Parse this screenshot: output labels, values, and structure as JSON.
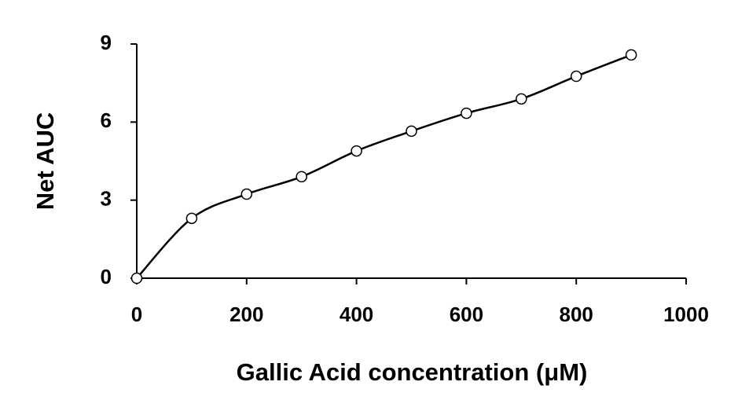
{
  "chart_data": {
    "type": "line",
    "x_label": "Gallic Acid concentration (μM)",
    "y_label": "Net AUC",
    "x": [
      0,
      100,
      200,
      300,
      400,
      500,
      600,
      700,
      800,
      900
    ],
    "series": [
      {
        "name": "Net AUC",
        "color": "#000000",
        "values": [
          0,
          2.3,
          3.23,
          3.9,
          4.89,
          5.65,
          6.34,
          6.89,
          7.76,
          8.58
        ]
      }
    ],
    "xlim": [
      0,
      1000
    ],
    "xticks": [
      0,
      200,
      400,
      600,
      800,
      1000
    ],
    "ylim": [
      0,
      9
    ],
    "yticks": [
      0,
      3,
      6,
      9
    ],
    "smooth": true,
    "markers": true
  }
}
